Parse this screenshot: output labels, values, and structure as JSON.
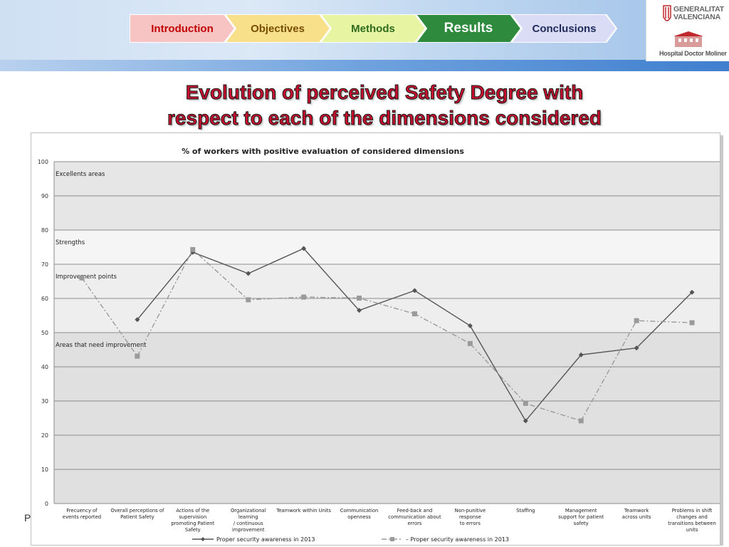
{
  "nav": {
    "steps": [
      {
        "label": "Introduction",
        "fill": "#f7c3c3",
        "text_color": "#c00000",
        "active": false
      },
      {
        "label": "Objectives",
        "fill": "#f8e08a",
        "text_color": "#7a4e00",
        "active": false
      },
      {
        "label": "Methods",
        "fill": "#e7f4a2",
        "text_color": "#2e6b1f",
        "active": false
      },
      {
        "label": "Results",
        "fill": "#2e8b3e",
        "text_color": "#ffffff",
        "active": true
      },
      {
        "label": "Conclusions",
        "fill": "#dadcf5",
        "text_color": "#1f2a5a",
        "active": false
      }
    ]
  },
  "logo": {
    "org_line1": "GENERALITAT",
    "org_line2": "VALENCIANA",
    "hospital": "Hospital Doctor Moliner"
  },
  "slide": {
    "title_line1": "Evolution of perceived Safety Degree with",
    "title_line2": "respect to each of the dimensions considered",
    "left_letter": "P"
  },
  "colors": {
    "title": "#c8102e",
    "series_2013_solid": "#555555",
    "series_2013_dashed": "#9a9a9a"
  },
  "chart_data": {
    "type": "line",
    "title": "% of workers with positive evaluation of considered dimensions",
    "xlabel": "",
    "ylabel": "",
    "ylim": [
      0,
      100
    ],
    "yticks": [
      0,
      10,
      20,
      30,
      40,
      50,
      60,
      70,
      80,
      90,
      100
    ],
    "grid": true,
    "legend_position": "bottom",
    "categories": [
      [
        "Frecuency of",
        "events reported"
      ],
      [
        "Overall perceptions of",
        "Patient Safety"
      ],
      [
        "Actions of the",
        "supervision",
        "promoting Patient",
        "Safety"
      ],
      [
        "Organizational",
        "learning",
        "/ continuous",
        "improvement"
      ],
      [
        "Teamwork within Units"
      ],
      [
        "Communication",
        "openness"
      ],
      [
        "Feed-back and",
        "communication about",
        "errors"
      ],
      [
        "Non-punitive",
        "response",
        "to errors"
      ],
      [
        "Staffing"
      ],
      [
        "Management",
        "support for patient",
        "safety"
      ],
      [
        "Teamwork",
        "across units"
      ],
      [
        "Problems in shift",
        "changes and",
        "transitions between",
        "units"
      ]
    ],
    "bands": [
      {
        "label": "Excellents areas",
        "from": 80,
        "to": 100,
        "color": "#e6e6e6"
      },
      {
        "label": "Strengths",
        "from": 70,
        "to": 80,
        "color": "#f5f5f5"
      },
      {
        "label": "Improvement points",
        "from": 50,
        "to": 70,
        "color": "#eeeeee"
      },
      {
        "label": "Areas that need improvement",
        "from": 0,
        "to": 50,
        "color": "#e0e0e0"
      }
    ],
    "series": [
      {
        "name": "Proper security awareness in 2013",
        "legend_label": "Proper security awareness in 2013",
        "style": "solid",
        "marker": "diamond",
        "values": [
          null,
          53.8,
          73.5,
          67.3,
          74.6,
          56.5,
          62.3,
          52.0,
          24.2,
          43.5,
          45.5,
          61.8
        ]
      },
      {
        "name": "Proper security awareness in 2013 (dashed)",
        "legend_label": "– Proper security awareness in 2013",
        "style": "dashdot",
        "marker": "square",
        "values": [
          66.0,
          43.1,
          74.3,
          59.6,
          60.4,
          60.1,
          55.5,
          46.8,
          29.3,
          24.2,
          53.5,
          52.9
        ]
      }
    ]
  }
}
